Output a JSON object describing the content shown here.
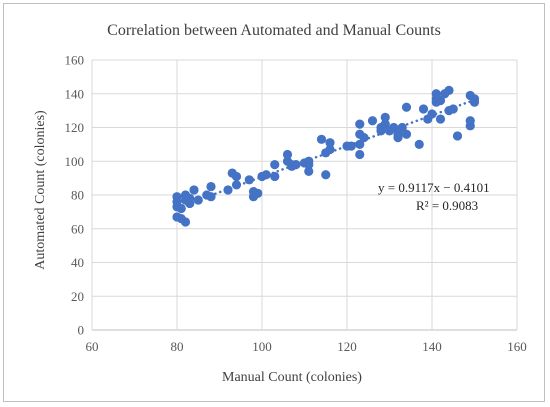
{
  "chart_data": {
    "type": "scatter",
    "title": "Correlation between Automated and Manual Counts",
    "xlabel": "Manual Count (colonies)",
    "ylabel": "Automated Count (colonies)",
    "xlim": [
      60,
      160
    ],
    "ylim": [
      0,
      160
    ],
    "xticks": [
      "60",
      "80",
      "100",
      "120",
      "140",
      "160"
    ],
    "yticks": [
      "0",
      "20",
      "40",
      "60",
      "80",
      "100",
      "120",
      "140",
      "160"
    ],
    "grid": true,
    "marker_color": "#4472c4",
    "trendline": {
      "type": "linear",
      "slope": 0.9117,
      "intercept": -0.4101,
      "x_range": [
        80,
        150
      ],
      "style": "dotted",
      "equation": "y = 0.9117x − 0.4101",
      "r_squared": "R² = 0.9083"
    },
    "points": [
      [
        80,
        79
      ],
      [
        80,
        76
      ],
      [
        80,
        73
      ],
      [
        80,
        67
      ],
      [
        81,
        66
      ],
      [
        81,
        72
      ],
      [
        82,
        80
      ],
      [
        82,
        77
      ],
      [
        82,
        64
      ],
      [
        83,
        78
      ],
      [
        83,
        75
      ],
      [
        84,
        83
      ],
      [
        85,
        77
      ],
      [
        87,
        80
      ],
      [
        88,
        85
      ],
      [
        88,
        79
      ],
      [
        92,
        83
      ],
      [
        93,
        93
      ],
      [
        94,
        91
      ],
      [
        94,
        86
      ],
      [
        97,
        89
      ],
      [
        98,
        82
      ],
      [
        98,
        79
      ],
      [
        99,
        81
      ],
      [
        100,
        91
      ],
      [
        101,
        92
      ],
      [
        103,
        98
      ],
      [
        103,
        91
      ],
      [
        106,
        104
      ],
      [
        106,
        100
      ],
      [
        107,
        98
      ],
      [
        107,
        97
      ],
      [
        108,
        98
      ],
      [
        110,
        99
      ],
      [
        111,
        94
      ],
      [
        111,
        98
      ],
      [
        111,
        100
      ],
      [
        114,
        113
      ],
      [
        115,
        105
      ],
      [
        115,
        92
      ],
      [
        116,
        111
      ],
      [
        116,
        107
      ],
      [
        120,
        109
      ],
      [
        121,
        109
      ],
      [
        123,
        122
      ],
      [
        123,
        116
      ],
      [
        123,
        110
      ],
      [
        123,
        104
      ],
      [
        124,
        114
      ],
      [
        126,
        124
      ],
      [
        128,
        120
      ],
      [
        128,
        118
      ],
      [
        129,
        126
      ],
      [
        129,
        122
      ],
      [
        130,
        118
      ],
      [
        131,
        120
      ],
      [
        132,
        114
      ],
      [
        132,
        116
      ],
      [
        133,
        120
      ],
      [
        134,
        132
      ],
      [
        134,
        116
      ],
      [
        137,
        110
      ],
      [
        138,
        131
      ],
      [
        139,
        125
      ],
      [
        140,
        128
      ],
      [
        141,
        140
      ],
      [
        141,
        137
      ],
      [
        141,
        135
      ],
      [
        142,
        136
      ],
      [
        142,
        125
      ],
      [
        143,
        140
      ],
      [
        144,
        142
      ],
      [
        144,
        130
      ],
      [
        145,
        131
      ],
      [
        146,
        115
      ],
      [
        149,
        139
      ],
      [
        149,
        124
      ],
      [
        149,
        121
      ],
      [
        150,
        137
      ],
      [
        150,
        135
      ]
    ]
  }
}
